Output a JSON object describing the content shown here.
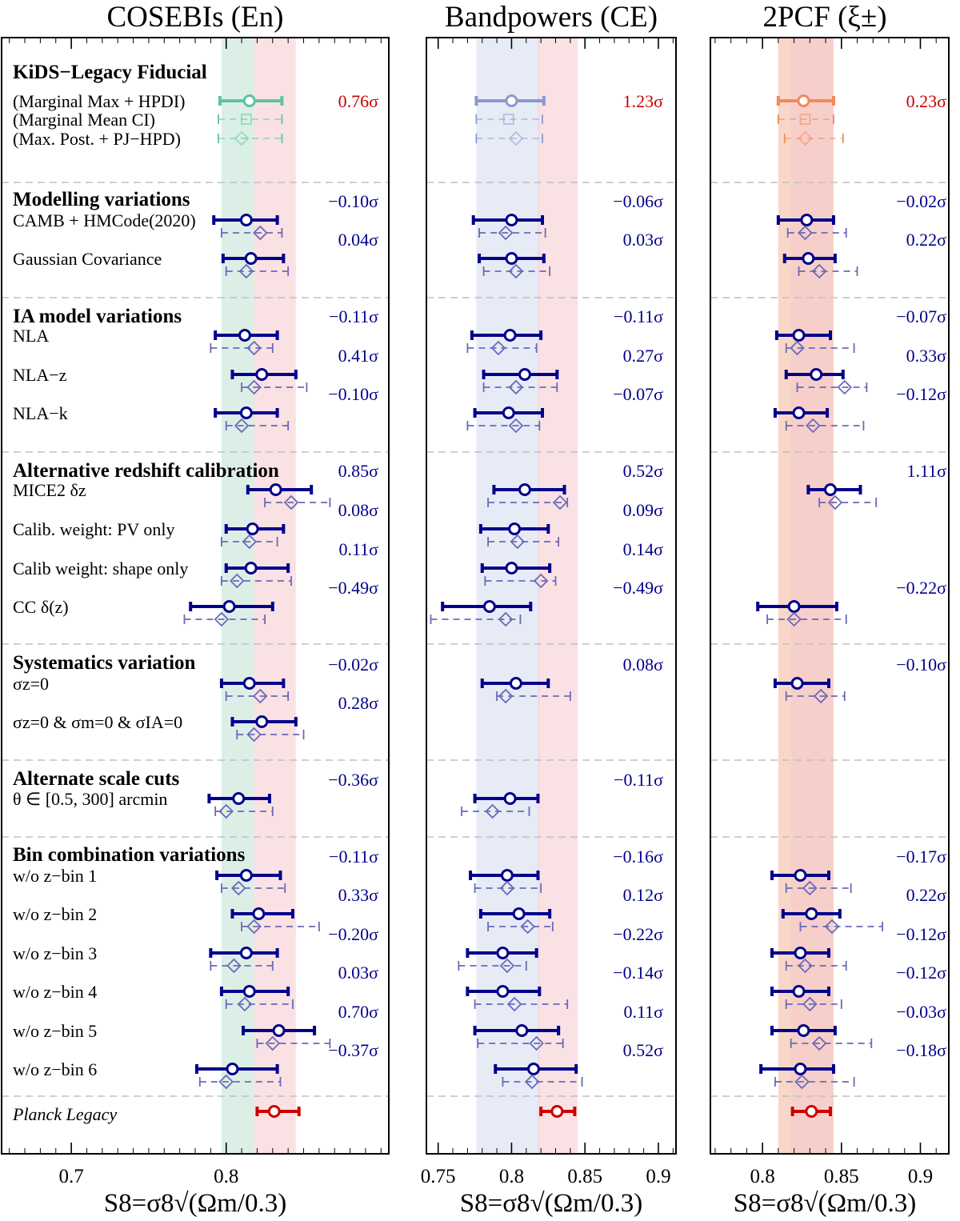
{
  "chart_data": {
    "type": "forest",
    "xlabel": "S8=σ8√(Ωm/0.3)",
    "colors": {
      "series_main": "#00008b",
      "series_alt": "#6a6ab8",
      "planck": "#cc0000",
      "sigma_text_fid": "#cc0000",
      "sigma_text_var": "#00008b",
      "band_planck": "#f5c8cc",
      "separator": "#c0c0c0"
    },
    "sections": [
      {
        "title": "KiDS−Legacy Fiducial"
      },
      {
        "title": "Modelling variations"
      },
      {
        "title": "IA model variations"
      },
      {
        "title": "Alternative redshift calibration"
      },
      {
        "title": "Systematics variation"
      },
      {
        "title": "Alternate scale cuts"
      },
      {
        "title": "Bin combination variations"
      }
    ],
    "rows": [
      {
        "label": "(Marginal Max + HPDI)",
        "section": 0,
        "kind": "fid_main"
      },
      {
        "label": "(Marginal Mean CI)",
        "section": 0,
        "kind": "fid_mean"
      },
      {
        "label": "(Max. Post. + PJ−HPD)",
        "section": 0,
        "kind": "fid_map"
      },
      {
        "label": "CAMB + HMCode(2020)",
        "section": 1
      },
      {
        "label": "Gaussian Covariance",
        "section": 1
      },
      {
        "label": "NLA",
        "section": 2
      },
      {
        "label": "NLA−z",
        "section": 2
      },
      {
        "label": "NLA−k",
        "section": 2
      },
      {
        "label": "MICE2 δz",
        "section": 3
      },
      {
        "label": "Calib. weight: PV only",
        "section": 3
      },
      {
        "label": "Calib weight: shape only",
        "section": 3
      },
      {
        "label": "CC δ(z)",
        "section": 3
      },
      {
        "label": "σz=0",
        "section": 4
      },
      {
        "label": "σz=0 & σm=0 & σIA=0",
        "section": 4
      },
      {
        "label": "θ ∈ [0.5, 300] arcmin",
        "section": 5
      },
      {
        "label": "w/o z−bin 1",
        "section": 6
      },
      {
        "label": "w/o z−bin 2",
        "section": 6
      },
      {
        "label": "w/o z−bin 3",
        "section": 6
      },
      {
        "label": "w/o z−bin 4",
        "section": 6
      },
      {
        "label": "w/o z−bin 5",
        "section": 6
      },
      {
        "label": "w/o z−bin 6",
        "section": 6
      },
      {
        "label": "Planck Legacy",
        "section": -1,
        "kind": "planck"
      }
    ],
    "planck": {
      "value": 0.832,
      "lo": 0.819,
      "hi": 0.845,
      "band": [
        0.818,
        0.845
      ]
    },
    "panels": [
      {
        "title": "COSEBIs (En)",
        "xlim": [
          0.655,
          0.905
        ],
        "ticks": [
          0.7,
          0.8
        ],
        "tick_labels": [
          "0.7",
          "0.8"
        ],
        "band": [
          0.797,
          0.818
        ],
        "band_color": "#cfe9df",
        "fid_color": "#5ec4a0",
        "points": [
          [
            0.815,
            0.796,
            0.836,
            null,
            null,
            null,
            "0.76σ"
          ],
          [
            0.813,
            0.795,
            0.836,
            null,
            null,
            null,
            ""
          ],
          [
            0.81,
            0.795,
            0.836,
            null,
            null,
            null,
            ""
          ],
          [
            0.813,
            0.792,
            0.833,
            0.822,
            0.797,
            0.836,
            "−0.10σ"
          ],
          [
            0.816,
            0.798,
            0.837,
            0.813,
            0.8,
            0.84,
            "0.04σ"
          ],
          [
            0.812,
            0.793,
            0.833,
            0.818,
            0.79,
            0.83,
            "−0.11σ"
          ],
          [
            0.823,
            0.804,
            0.845,
            0.818,
            0.81,
            0.852,
            "0.41σ"
          ],
          [
            0.813,
            0.793,
            0.833,
            0.81,
            0.8,
            0.84,
            "−0.10σ"
          ],
          [
            0.832,
            0.814,
            0.855,
            0.842,
            0.825,
            0.867,
            "0.85σ"
          ],
          [
            0.817,
            0.8,
            0.837,
            0.815,
            0.797,
            0.833,
            "0.08σ"
          ],
          [
            0.816,
            0.8,
            0.84,
            0.807,
            0.797,
            0.842,
            "0.11σ"
          ],
          [
            0.802,
            0.777,
            0.83,
            0.797,
            0.773,
            0.825,
            "−0.49σ"
          ],
          [
            0.815,
            0.797,
            0.837,
            0.822,
            0.8,
            0.84,
            "−0.02σ"
          ],
          [
            0.823,
            0.804,
            0.845,
            0.818,
            0.807,
            0.85,
            "0.28σ"
          ],
          [
            0.808,
            0.789,
            0.828,
            0.8,
            0.793,
            0.83,
            "−0.36σ"
          ],
          [
            0.813,
            0.794,
            0.835,
            0.808,
            0.797,
            0.838,
            "−0.11σ"
          ],
          [
            0.821,
            0.804,
            0.843,
            0.818,
            0.81,
            0.86,
            "0.33σ"
          ],
          [
            0.813,
            0.79,
            0.833,
            0.805,
            0.79,
            0.83,
            "−0.20σ"
          ],
          [
            0.815,
            0.797,
            0.84,
            0.812,
            0.8,
            0.843,
            "0.03σ"
          ],
          [
            0.834,
            0.811,
            0.857,
            0.83,
            0.82,
            0.867,
            "0.70σ"
          ],
          [
            0.804,
            0.781,
            0.833,
            0.8,
            0.783,
            0.835,
            "−0.37σ"
          ],
          [
            0.831,
            0.82,
            0.847,
            null,
            null,
            null,
            ""
          ]
        ]
      },
      {
        "title": "Bandpowers (CE)",
        "xlim": [
          0.742,
          0.912
        ],
        "ticks": [
          0.75,
          0.8,
          0.85,
          0.9
        ],
        "tick_labels": [
          "0.75",
          "0.8",
          "0.85",
          "0.9"
        ],
        "band": [
          0.776,
          0.819
        ],
        "band_color": "#dfe4f2",
        "fid_color": "#8a9ad0",
        "points": [
          [
            0.8,
            0.776,
            0.822,
            null,
            null,
            null,
            "1.23σ"
          ],
          [
            0.798,
            0.776,
            0.821,
            null,
            null,
            null,
            ""
          ],
          [
            0.803,
            0.776,
            0.821,
            null,
            null,
            null,
            ""
          ],
          [
            0.8,
            0.774,
            0.821,
            0.796,
            0.778,
            0.823,
            "−0.06σ"
          ],
          [
            0.8,
            0.778,
            0.822,
            0.803,
            0.781,
            0.826,
            "0.03σ"
          ],
          [
            0.799,
            0.773,
            0.82,
            0.791,
            0.77,
            0.817,
            "−0.11σ"
          ],
          [
            0.809,
            0.781,
            0.831,
            0.803,
            0.781,
            0.831,
            "0.27σ"
          ],
          [
            0.798,
            0.775,
            0.821,
            0.803,
            0.77,
            0.819,
            "−0.07σ"
          ],
          [
            0.809,
            0.788,
            0.836,
            0.833,
            0.784,
            0.838,
            "0.52σ"
          ],
          [
            0.802,
            0.779,
            0.825,
            0.804,
            0.784,
            0.832,
            "0.09σ"
          ],
          [
            0.8,
            0.78,
            0.826,
            0.82,
            0.782,
            0.83,
            "0.14σ"
          ],
          [
            0.785,
            0.753,
            0.813,
            0.796,
            0.745,
            0.806,
            "−0.49σ"
          ],
          [
            0.803,
            0.78,
            0.825,
            0.796,
            0.79,
            0.84,
            "0.08σ"
          ],
          [
            null,
            null,
            null,
            null,
            null,
            null,
            ""
          ],
          [
            0.799,
            0.775,
            0.818,
            0.787,
            0.766,
            0.812,
            "−0.11σ"
          ],
          [
            0.797,
            0.772,
            0.818,
            0.797,
            0.775,
            0.82,
            "−0.16σ"
          ],
          [
            0.805,
            0.779,
            0.826,
            0.811,
            0.784,
            0.828,
            "0.12σ"
          ],
          [
            0.794,
            0.77,
            0.817,
            0.797,
            0.764,
            0.81,
            "−0.22σ"
          ],
          [
            0.794,
            0.77,
            0.819,
            0.802,
            0.775,
            0.838,
            "−0.14σ"
          ],
          [
            0.807,
            0.775,
            0.832,
            0.817,
            0.777,
            0.835,
            "0.11σ"
          ],
          [
            0.815,
            0.789,
            0.844,
            0.814,
            0.794,
            0.848,
            "0.52σ"
          ],
          [
            0.831,
            0.82,
            0.843,
            null,
            null,
            null,
            ""
          ]
        ]
      },
      {
        "title": "2PCF (ξ±)",
        "xlim": [
          0.767,
          0.918
        ],
        "ticks": [
          0.8,
          0.85,
          0.9
        ],
        "tick_labels": [
          "0.8",
          "0.85",
          "0.9"
        ],
        "band": [
          0.81,
          0.845
        ],
        "band_color": "#f6c9b6",
        "fid_color": "#f2885c",
        "points": [
          [
            0.826,
            0.81,
            0.845,
            null,
            null,
            null,
            "0.23σ"
          ],
          [
            0.827,
            0.81,
            0.845,
            null,
            null,
            null,
            ""
          ],
          [
            0.827,
            0.814,
            0.851,
            null,
            null,
            null,
            ""
          ],
          [
            0.828,
            0.81,
            0.845,
            0.827,
            0.816,
            0.853,
            "−0.02σ"
          ],
          [
            0.829,
            0.814,
            0.846,
            0.836,
            0.823,
            0.86,
            "0.22σ"
          ],
          [
            0.823,
            0.809,
            0.843,
            0.822,
            0.815,
            0.858,
            "−0.07σ"
          ],
          [
            0.834,
            0.815,
            0.851,
            0.852,
            0.822,
            0.866,
            "0.33σ"
          ],
          [
            0.823,
            0.808,
            0.841,
            0.832,
            0.815,
            0.864,
            "−0.12σ"
          ],
          [
            0.843,
            0.829,
            0.862,
            0.846,
            0.836,
            0.872,
            "1.11σ"
          ],
          [
            null,
            null,
            null,
            null,
            null,
            null,
            ""
          ],
          [
            null,
            null,
            null,
            null,
            null,
            null,
            ""
          ],
          [
            0.82,
            0.797,
            0.847,
            0.82,
            0.803,
            0.853,
            "−0.22σ"
          ],
          [
            0.822,
            0.808,
            0.842,
            0.837,
            0.815,
            0.852,
            "−0.10σ"
          ],
          [
            null,
            null,
            null,
            null,
            null,
            null,
            ""
          ],
          [
            null,
            null,
            null,
            null,
            null,
            null,
            ""
          ],
          [
            0.824,
            0.806,
            0.842,
            0.83,
            0.815,
            0.856,
            "−0.17σ"
          ],
          [
            0.831,
            0.813,
            0.849,
            0.844,
            0.824,
            0.876,
            "0.22σ"
          ],
          [
            0.824,
            0.806,
            0.842,
            0.827,
            0.815,
            0.853,
            "−0.12σ"
          ],
          [
            0.823,
            0.806,
            0.842,
            0.83,
            0.815,
            0.85,
            "−0.12σ"
          ],
          [
            0.826,
            0.806,
            0.846,
            0.836,
            0.818,
            0.869,
            "−0.03σ"
          ],
          [
            0.824,
            0.799,
            0.845,
            0.825,
            0.808,
            0.858,
            "−0.18σ"
          ],
          [
            0.831,
            0.819,
            0.843,
            null,
            null,
            null,
            ""
          ]
        ]
      }
    ]
  }
}
